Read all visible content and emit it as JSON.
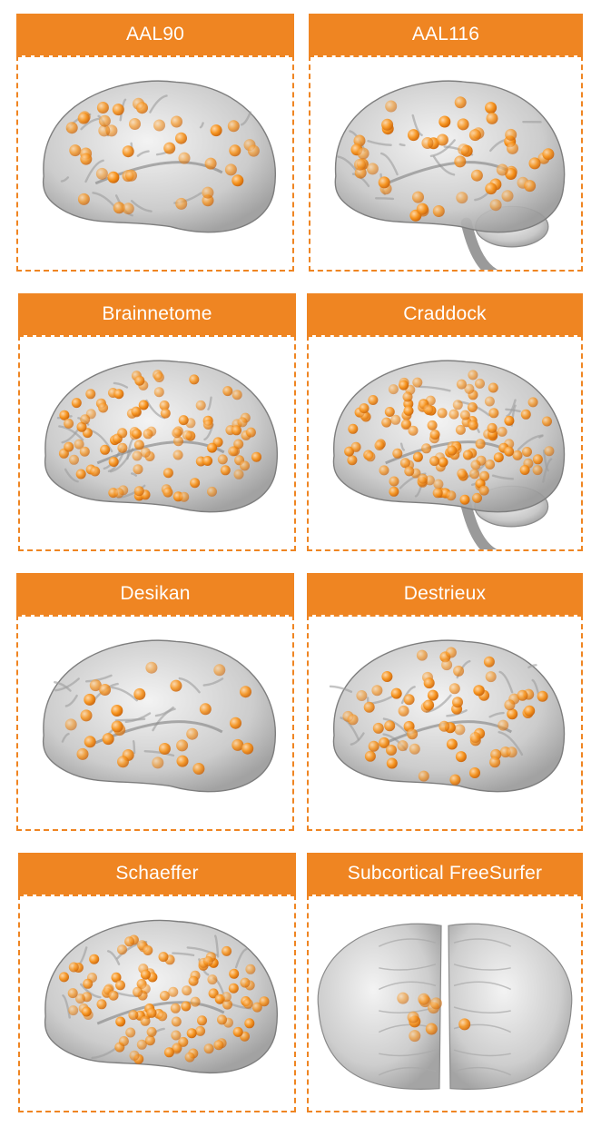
{
  "accent_color": "#ef8522",
  "node_color": "#f7941d",
  "panels": [
    {
      "title": "AAL90",
      "view": "lateral",
      "density": 38,
      "seed": 11
    },
    {
      "title": "AAL116",
      "view": "lateral-cerebellum",
      "density": 48,
      "seed": 23
    },
    {
      "title": "Brainnetome",
      "view": "lateral",
      "density": 95,
      "seed": 37
    },
    {
      "title": "Craddock",
      "view": "lateral-cerebellum",
      "density": 120,
      "seed": 41
    },
    {
      "title": "Desikan",
      "view": "lateral",
      "density": 28,
      "seed": 53
    },
    {
      "title": "Destrieux",
      "view": "lateral",
      "density": 62,
      "seed": 67
    },
    {
      "title": "Schaeffer",
      "view": "lateral",
      "density": 100,
      "seed": 79
    },
    {
      "title": "Subcortical FreeSurfer",
      "view": "coronal",
      "density": 10,
      "seed": 97
    }
  ]
}
